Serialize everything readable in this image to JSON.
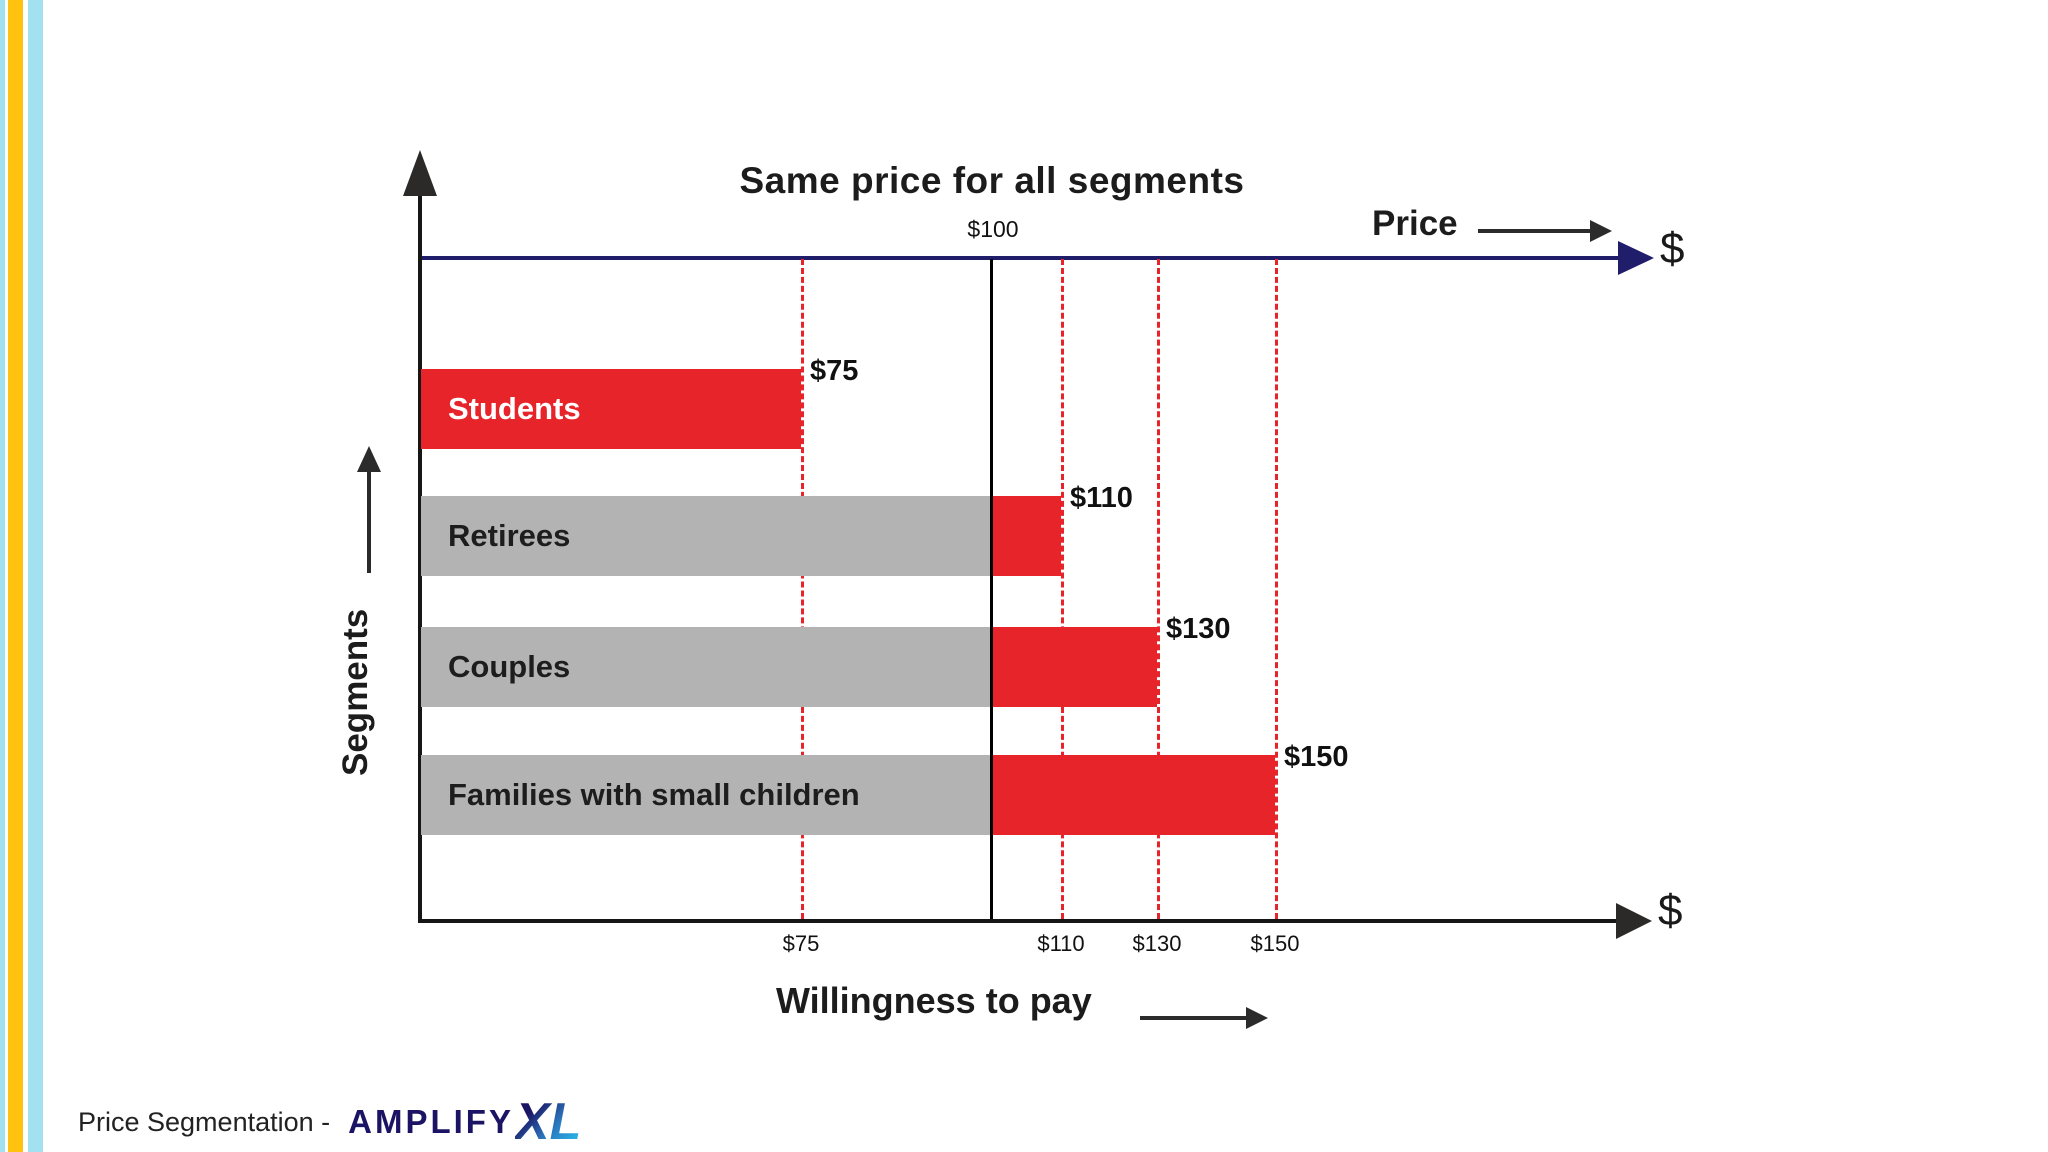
{
  "stripes": {
    "edge_color": "#a2e2f0",
    "yellow_color": "#ffc20e",
    "blue_color": "#a2e2f0"
  },
  "chart": {
    "title": "Same price for all segments",
    "price_point_label": "$100",
    "price_axis_label": "Price",
    "price_axis_symbol": "$",
    "x_axis_symbol": "$",
    "x_axis_caption": "Willingness to pay",
    "y_axis_caption": "Segments",
    "colors": {
      "red": "#e8242b",
      "gray": "#b3b3b3",
      "navy": "#201d6b",
      "axis_black": "#161616"
    },
    "bars": [
      {
        "label": "Students",
        "value_label": "$75",
        "wtp": 75
      },
      {
        "label": "Retirees",
        "value_label": "$110",
        "wtp": 110
      },
      {
        "label": "Couples",
        "value_label": "$130",
        "wtp": 130
      },
      {
        "label": "Families with small children",
        "value_label": "$150",
        "wtp": 150
      }
    ],
    "x_ticks": [
      {
        "label": "$75",
        "value": 75
      },
      {
        "label": "$110",
        "value": 110
      },
      {
        "label": "$130",
        "value": 130
      },
      {
        "label": "$150",
        "value": 150
      }
    ],
    "dashed_guides": [
      75,
      110,
      130,
      150
    ],
    "solid_guide": 100
  },
  "chart_data": {
    "type": "bar",
    "orientation": "horizontal",
    "title": "Same price for all segments",
    "categories": [
      "Students",
      "Retirees",
      "Couples",
      "Families with small children"
    ],
    "values": [
      75,
      110,
      130,
      150
    ],
    "reference_price": 100,
    "xlabel": "Willingness to pay",
    "ylabel": "Segments",
    "x_ticks": [
      75,
      110,
      130,
      150
    ],
    "annotations": [
      "$75",
      "$110",
      "$130",
      "$150",
      "$100"
    ],
    "legend": "none",
    "notes": "Bars colored red where willingness to pay differs from the uniform $100 price; gray up to the $100 price line for segments above $100."
  },
  "footer": {
    "caption": "Price Segmentation -",
    "brand": "AMPLIFY",
    "brand_suffix": "XL",
    "brand_color": "#1b1464",
    "brand_accent": "#29abe2"
  }
}
